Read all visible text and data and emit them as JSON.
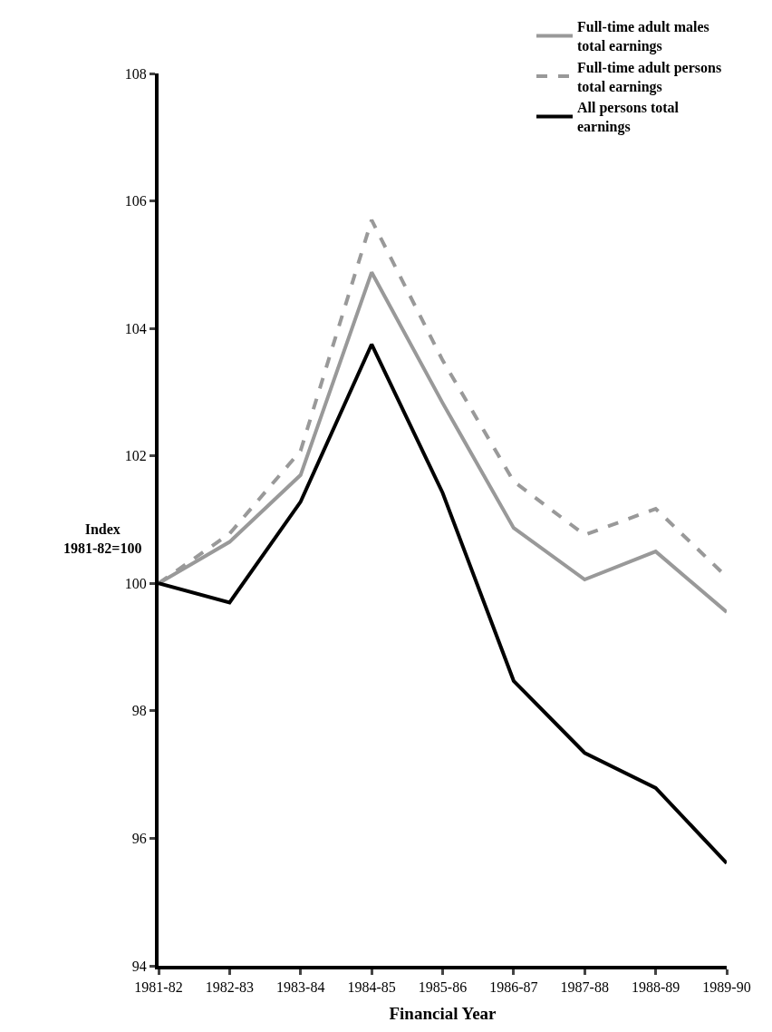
{
  "chart_data": {
    "type": "line",
    "xlabel": "Financial Year",
    "ylabel": "Index 1981-82=100",
    "categories": [
      "1981-82",
      "1982-83",
      "1983-84",
      "1984-85",
      "1985-86",
      "1986-87",
      "1987-88",
      "1988-89",
      "1989-90"
    ],
    "series": [
      {
        "name": "Full-time adult males total earnings",
        "color": "#999999",
        "line_style": "solid",
        "values": [
          100,
          100.65,
          101.7,
          104.88,
          102.83,
          100.87,
          100.06,
          100.5,
          99.55
        ]
      },
      {
        "name": "Full-time adult persons total earnings",
        "color": "#999999",
        "line_style": "dashed",
        "values": [
          100,
          100.78,
          102.08,
          105.7,
          103.5,
          101.6,
          100.76,
          101.17,
          100.1
        ]
      },
      {
        "name": "All persons total earnings",
        "color": "#000000",
        "line_style": "solid",
        "values": [
          100,
          99.7,
          101.28,
          103.75,
          101.42,
          98.47,
          97.34,
          96.79,
          95.61
        ]
      }
    ],
    "ylim": [
      94,
      108
    ],
    "yticks": [
      94,
      96,
      98,
      100,
      102,
      104,
      106,
      108
    ],
    "legend": "top right",
    "marker": "none"
  }
}
